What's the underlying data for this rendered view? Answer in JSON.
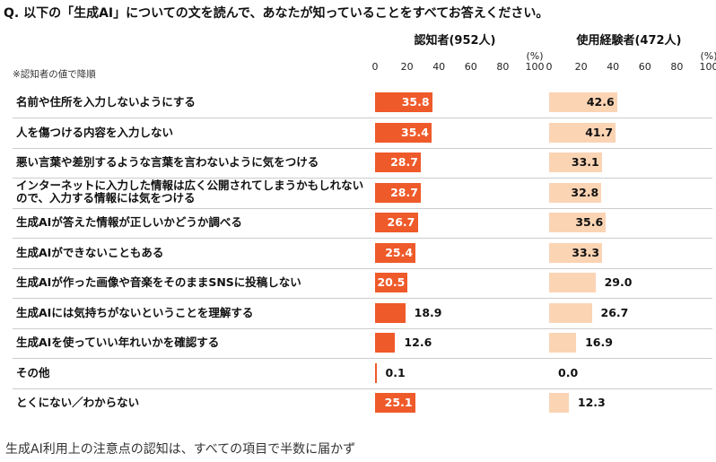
{
  "question": "Q. 以下の「生成AI」についての文を読んで、あなたが知っていることをすべてお答えください。",
  "note": "※認知者の値で降順",
  "caption": "生成AI利用上の注意点の認知は、すべての項目で半数に届かず",
  "chart_data": {
    "type": "bar",
    "orientation": "horizontal",
    "unit": "(%)",
    "xlim": [
      0,
      100
    ],
    "ticks": [
      "0",
      "20",
      "40",
      "60",
      "80",
      "100"
    ],
    "series": [
      {
        "name": "認知者(952人)",
        "color": "#ef5a2a",
        "values": [
          35.8,
          35.4,
          28.7,
          28.7,
          26.7,
          25.4,
          20.5,
          18.9,
          12.6,
          0.1,
          25.1
        ]
      },
      {
        "name": "使用経験者(472人)",
        "color": "#fbd4b4",
        "values": [
          42.6,
          41.7,
          33.1,
          32.8,
          35.6,
          33.3,
          29.0,
          26.7,
          16.9,
          0.0,
          12.3
        ]
      }
    ],
    "categories": [
      "名前や住所を入力しないようにする",
      "人を傷つける内容を入力しない",
      "悪い言葉や差別するような言葉を言わないように気をつける",
      "インターネットに入力した情報は広く公開されてしまうかもしれないので、入力する情報には気をつける",
      "生成AIが答えた情報が正しいかどうか調べる",
      "生成AIができないこともある",
      "生成AIが作った画像や音楽をそのままSNSに投稿しない",
      "生成AIには気持ちがないということを理解する",
      "生成AIを使っていい年れいかを確認する",
      "その他",
      "とくにない／わからない"
    ],
    "value_labels": [
      [
        "35.8",
        "35.4",
        "28.7",
        "28.7",
        "26.7",
        "25.4",
        "20.5",
        "18.9",
        "12.6",
        "0.1",
        "25.1"
      ],
      [
        "42.6",
        "41.7",
        "33.1",
        "32.8",
        "35.6",
        "33.3",
        "29.0",
        "26.7",
        "16.9",
        "0.0",
        "12.3"
      ]
    ]
  }
}
